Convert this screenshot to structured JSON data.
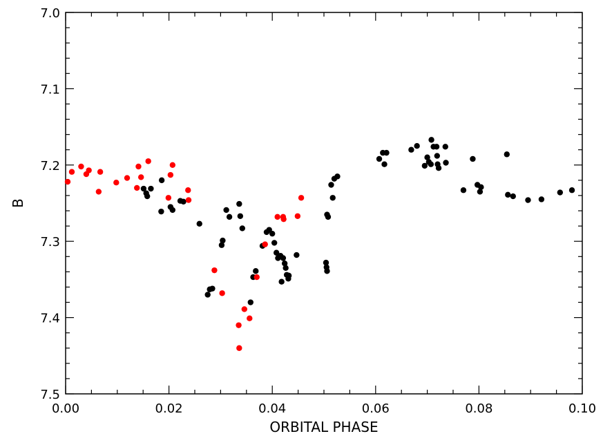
{
  "chart_data": {
    "type": "scatter",
    "title": "",
    "xlabel": "ORBITAL PHASE",
    "ylabel": "B",
    "xlim": [
      0.0,
      0.1
    ],
    "ylim": [
      7.5,
      7.0
    ],
    "y_inverted": true,
    "grid": false,
    "x_ticks": [
      {
        "value": 0.0,
        "label": "0.00"
      },
      {
        "value": 0.02,
        "label": "0.02"
      },
      {
        "value": 0.04,
        "label": "0.04"
      },
      {
        "value": 0.06,
        "label": "0.06"
      },
      {
        "value": 0.08,
        "label": "0.08"
      },
      {
        "value": 0.1,
        "label": "0.10"
      }
    ],
    "y_ticks": [
      {
        "value": 7.0,
        "label": "7.0"
      },
      {
        "value": 7.1,
        "label": "7.1"
      },
      {
        "value": 7.2,
        "label": "7.2"
      },
      {
        "value": 7.3,
        "label": "7.3"
      },
      {
        "value": 7.4,
        "label": "7.4"
      },
      {
        "value": 7.5,
        "label": "7.5"
      }
    ],
    "series": [
      {
        "color": "#000000",
        "points": [
          [
            0.0151,
            7.231
          ],
          [
            0.0156,
            7.237
          ],
          [
            0.0158,
            7.241
          ],
          [
            0.0165,
            7.231
          ],
          [
            0.0186,
            7.22
          ],
          [
            0.0185,
            7.261
          ],
          [
            0.0203,
            7.255
          ],
          [
            0.0207,
            7.259
          ],
          [
            0.0222,
            7.247
          ],
          [
            0.0228,
            7.248
          ],
          [
            0.0259,
            7.277
          ],
          [
            0.0275,
            7.37
          ],
          [
            0.0279,
            7.363
          ],
          [
            0.0284,
            7.362
          ],
          [
            0.0302,
            7.305
          ],
          [
            0.0304,
            7.299
          ],
          [
            0.0311,
            7.259
          ],
          [
            0.0317,
            7.268
          ],
          [
            0.0336,
            7.251
          ],
          [
            0.0338,
            7.267
          ],
          [
            0.0342,
            7.283
          ],
          [
            0.0358,
            7.38
          ],
          [
            0.0363,
            7.347
          ],
          [
            0.0368,
            7.339
          ],
          [
            0.0381,
            7.306
          ],
          [
            0.0389,
            7.288
          ],
          [
            0.0394,
            7.285
          ],
          [
            0.04,
            7.29
          ],
          [
            0.0404,
            7.302
          ],
          [
            0.0408,
            7.315
          ],
          [
            0.0411,
            7.322
          ],
          [
            0.0416,
            7.319
          ],
          [
            0.0418,
            7.353
          ],
          [
            0.0421,
            7.322
          ],
          [
            0.0424,
            7.329
          ],
          [
            0.0426,
            7.335
          ],
          [
            0.0428,
            7.344
          ],
          [
            0.0431,
            7.349
          ],
          [
            0.0432,
            7.345
          ],
          [
            0.0447,
            7.318
          ],
          [
            0.0504,
            7.328
          ],
          [
            0.0505,
            7.334
          ],
          [
            0.0506,
            7.339
          ],
          [
            0.0506,
            7.265
          ],
          [
            0.0508,
            7.268
          ],
          [
            0.0514,
            7.226
          ],
          [
            0.0517,
            7.243
          ],
          [
            0.052,
            7.218
          ],
          [
            0.0526,
            7.215
          ],
          [
            0.0607,
            7.192
          ],
          [
            0.0614,
            7.184
          ],
          [
            0.0617,
            7.199
          ],
          [
            0.0621,
            7.184
          ],
          [
            0.0669,
            7.18
          ],
          [
            0.068,
            7.175
          ],
          [
            0.0695,
            7.201
          ],
          [
            0.07,
            7.19
          ],
          [
            0.0703,
            7.196
          ],
          [
            0.0707,
            7.199
          ],
          [
            0.0708,
            7.167
          ],
          [
            0.0712,
            7.176
          ],
          [
            0.0718,
            7.176
          ],
          [
            0.0719,
            7.188
          ],
          [
            0.072,
            7.199
          ],
          [
            0.0722,
            7.204
          ],
          [
            0.0735,
            7.176
          ],
          [
            0.0736,
            7.197
          ],
          [
            0.077,
            7.233
          ],
          [
            0.0788,
            7.192
          ],
          [
            0.0797,
            7.226
          ],
          [
            0.0802,
            7.235
          ],
          [
            0.0804,
            7.229
          ],
          [
            0.0854,
            7.186
          ],
          [
            0.0856,
            7.239
          ],
          [
            0.0866,
            7.241
          ],
          [
            0.0895,
            7.246
          ],
          [
            0.0921,
            7.245
          ],
          [
            0.0957,
            7.236
          ],
          [
            0.098,
            7.233
          ]
        ]
      },
      {
        "color": "#ff0000",
        "points": [
          [
            0.0004,
            7.222
          ],
          [
            0.0012,
            7.209
          ],
          [
            0.003,
            7.202
          ],
          [
            0.004,
            7.212
          ],
          [
            0.0045,
            7.207
          ],
          [
            0.0064,
            7.235
          ],
          [
            0.0067,
            7.209
          ],
          [
            0.0098,
            7.223
          ],
          [
            0.0119,
            7.217
          ],
          [
            0.0138,
            7.23
          ],
          [
            0.0141,
            7.202
          ],
          [
            0.0146,
            7.216
          ],
          [
            0.016,
            7.195
          ],
          [
            0.0199,
            7.243
          ],
          [
            0.0203,
            7.213
          ],
          [
            0.0207,
            7.2
          ],
          [
            0.0237,
            7.233
          ],
          [
            0.0238,
            7.246
          ],
          [
            0.0288,
            7.338
          ],
          [
            0.0303,
            7.368
          ],
          [
            0.0335,
            7.41
          ],
          [
            0.0336,
            7.44
          ],
          [
            0.0346,
            7.389
          ],
          [
            0.0356,
            7.401
          ],
          [
            0.037,
            7.347
          ],
          [
            0.0386,
            7.304
          ],
          [
            0.041,
            7.268
          ],
          [
            0.0421,
            7.268
          ],
          [
            0.0422,
            7.271
          ],
          [
            0.0449,
            7.267
          ],
          [
            0.0456,
            7.243
          ]
        ]
      }
    ]
  }
}
